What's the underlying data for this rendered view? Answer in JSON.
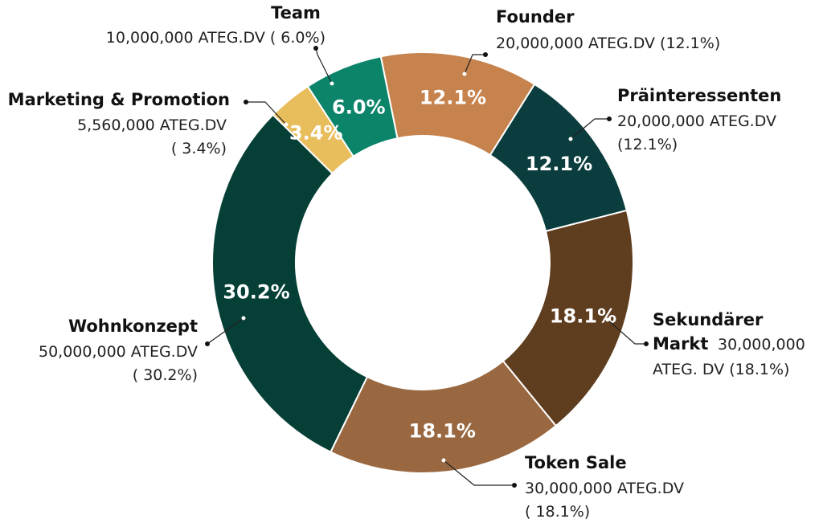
{
  "chart_data": {
    "type": "pie",
    "variant": "donut",
    "title": "",
    "categories": [
      "Founder",
      "Präinteressenten",
      "Sekundärer Markt",
      "Token Sale",
      "Wohnkonzept",
      "Marketing & Promotion",
      "Team"
    ],
    "values": [
      12.1,
      12.1,
      18.1,
      18.1,
      30.2,
      3.4,
      6.0
    ],
    "slices": [
      {
        "name": "Founder",
        "percent_label": "12.1%",
        "amount_label": "20,000,000 ATEG.DV (12.1%)",
        "color": "#C6834E"
      },
      {
        "name": "Präinteressenten",
        "percent_label": "12.1%",
        "amount_label": "20,000,000 ATEG.DV",
        "amount_label_2": "(12.1%)",
        "color": "#0B3D3E"
      },
      {
        "name": "Sekundärer",
        "name_2": "Markt",
        "percent_label": "18.1%",
        "amount_label": "30,000,000",
        "amount_label_2": "ATEG. DV (18.1%)",
        "color": "#5F3D1F"
      },
      {
        "name": "Token Sale",
        "percent_label": "18.1%",
        "amount_label": "30,000,000 ATEG.DV",
        "amount_label_2": "( 18.1%)",
        "color": "#996841"
      },
      {
        "name": "Wohnkonzept",
        "percent_label": "30.2%",
        "amount_label": "50,000,000 ATEG.DV",
        "amount_label_2": "( 30.2%)",
        "color": "#053F36"
      },
      {
        "name": "Marketing & Promotion",
        "percent_label": "3.4%",
        "amount_label": "5,560,000 ATEG.DV",
        "amount_label_2": "( 3.4%)",
        "color": "#E8BD5B"
      },
      {
        "name": "Team",
        "percent_label": "6.0%",
        "amount_label": "10,000,000 ATEG.DV ( 6.0%)",
        "color": "#0C846A"
      }
    ]
  }
}
